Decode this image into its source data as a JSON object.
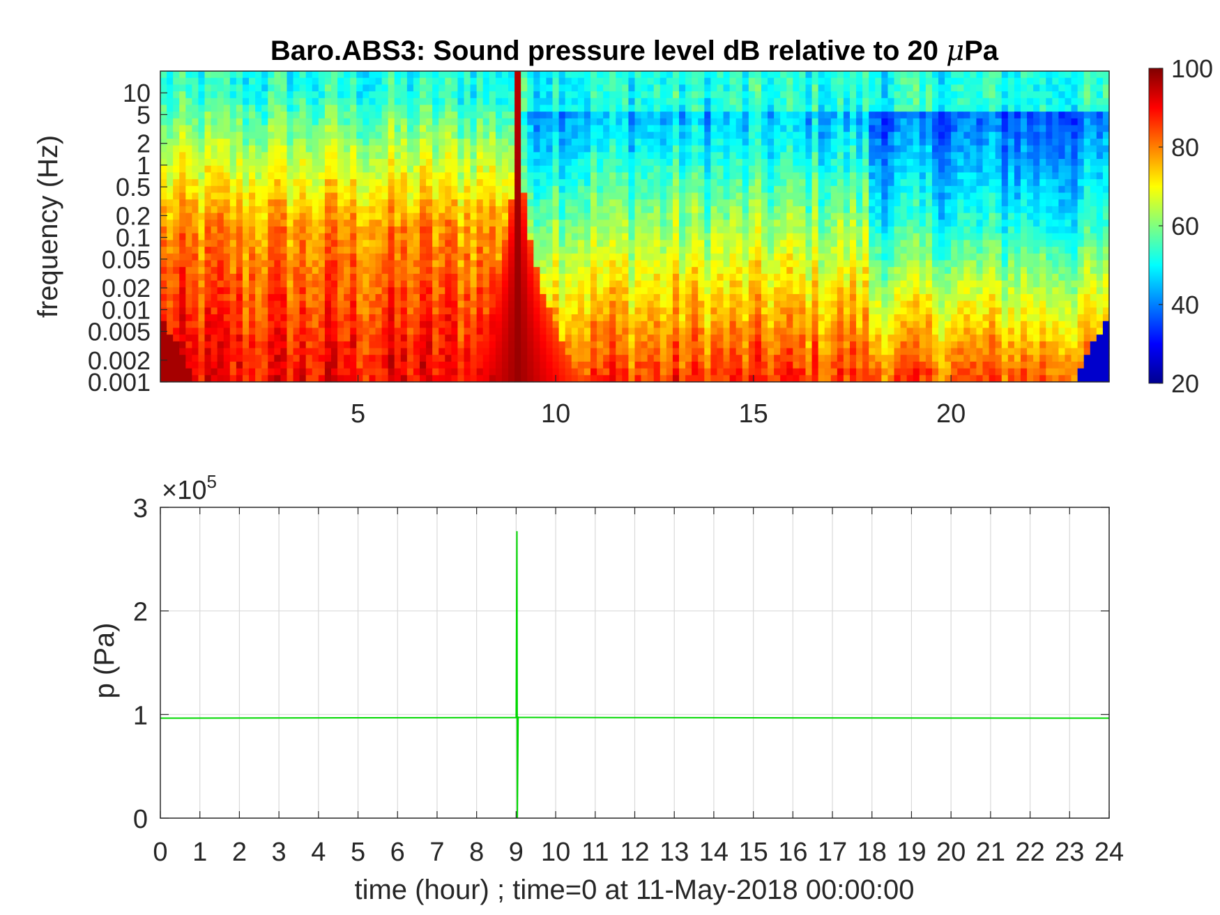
{
  "chart_data": [
    {
      "type": "heatmap",
      "title_main": "Baro.ABS3: Sound pressure level dB relative to 20 ",
      "title_mu": "μ",
      "title_unit": "Pa",
      "ylabel": "frequency (Hz)",
      "xlabel": "",
      "xlim": [
        0,
        24
      ],
      "ylim": [
        0.001,
        20
      ],
      "y_scale": "log",
      "x_ticks": [
        5,
        10,
        15,
        20
      ],
      "x_tick_labels": [
        "5",
        "10",
        "15",
        "20"
      ],
      "y_ticks": [
        0.001,
        0.002,
        0.005,
        0.01,
        0.02,
        0.05,
        0.1,
        0.2,
        0.5,
        1,
        2,
        5,
        10
      ],
      "y_tick_labels": [
        "0.001",
        "0.002",
        "0.005",
        "0.01",
        "0.02",
        "0.05",
        "0.1",
        "0.2",
        "0.5",
        "1",
        "2",
        "5",
        "10"
      ],
      "colormap": "jet",
      "colorbar": {
        "range": [
          20,
          100
        ],
        "ticks": [
          20,
          40,
          60,
          80,
          100
        ],
        "tick_labels": [
          "20",
          "40",
          "60",
          "80",
          "100"
        ]
      },
      "event_hour": 9.05,
      "features": [
        {
          "hours": [
            0,
            9
          ],
          "spl_low_freq_db": 90,
          "spl_mid_freq_db": 78,
          "spl_high_freq_db": 48
        },
        {
          "hours": [
            9,
            18
          ],
          "spl_low_freq_db": 86,
          "spl_mid_freq_db": 62,
          "spl_high_freq_db": 38
        },
        {
          "hours": [
            18,
            24
          ],
          "spl_low_freq_db": 84,
          "spl_mid_freq_db": 52,
          "spl_high_freq_db": 32
        }
      ]
    },
    {
      "type": "line",
      "ylabel": "p (Pa)",
      "xlabel": "time (hour) ; time=0 at 11-May-2018 00:00:00",
      "xlim": [
        0,
        24
      ],
      "ylim": [
        0,
        300000
      ],
      "y_exponent_label": "×10",
      "y_exponent_power": "5",
      "x_ticks": [
        0,
        1,
        2,
        3,
        4,
        5,
        6,
        7,
        8,
        9,
        10,
        11,
        12,
        13,
        14,
        15,
        16,
        17,
        18,
        19,
        20,
        21,
        22,
        23,
        24
      ],
      "x_tick_labels": [
        "0",
        "1",
        "2",
        "3",
        "4",
        "5",
        "6",
        "7",
        "8",
        "9",
        "10",
        "11",
        "12",
        "13",
        "14",
        "15",
        "16",
        "17",
        "18",
        "19",
        "20",
        "21",
        "22",
        "23",
        "24"
      ],
      "y_ticks": [
        0,
        100000,
        200000,
        300000
      ],
      "y_tick_labels": [
        "0",
        "1",
        "2",
        "3"
      ],
      "grid": true,
      "series": [
        {
          "color": "#00d800",
          "x": [
            0,
            4,
            8,
            9.0,
            9.02,
            9.03,
            9.05,
            9.07,
            12,
            16,
            20,
            24
          ],
          "y": [
            96500,
            96800,
            97000,
            97000,
            277000,
            0,
            97500,
            97200,
            97000,
            96800,
            96600,
            96500
          ]
        }
      ]
    }
  ]
}
